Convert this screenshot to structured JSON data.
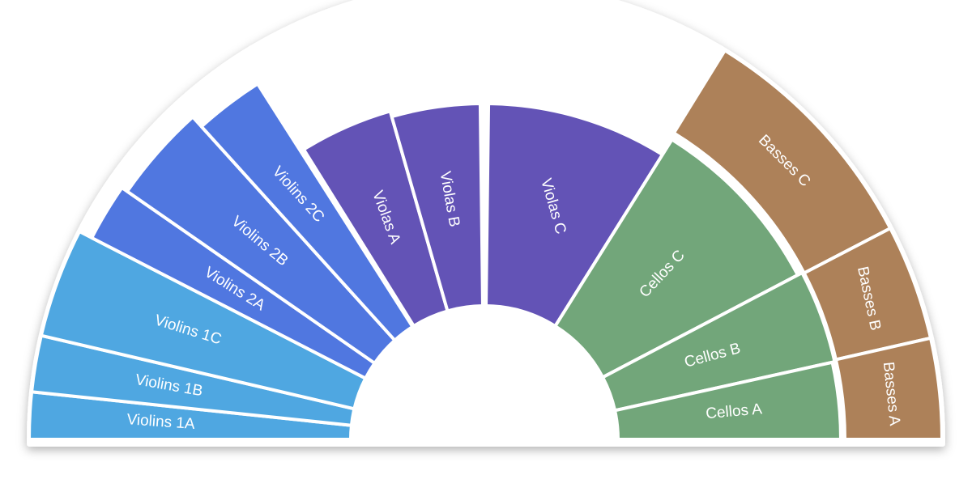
{
  "sections": [
    {
      "label": "Violins 1A"
    },
    {
      "label": "Violins 1B"
    },
    {
      "label": "Violins 1C"
    },
    {
      "label": "Violins 2A"
    },
    {
      "label": "Violins 2B"
    },
    {
      "label": "Violins 2C"
    },
    {
      "label": "Violas A"
    },
    {
      "label": "Violas B"
    },
    {
      "label": "Violas C"
    },
    {
      "label": "Cellos C"
    },
    {
      "label": "Cellos B"
    },
    {
      "label": "Cellos A"
    },
    {
      "label": "Basses C"
    },
    {
      "label": "Basses B"
    },
    {
      "label": "Basses A"
    }
  ]
}
